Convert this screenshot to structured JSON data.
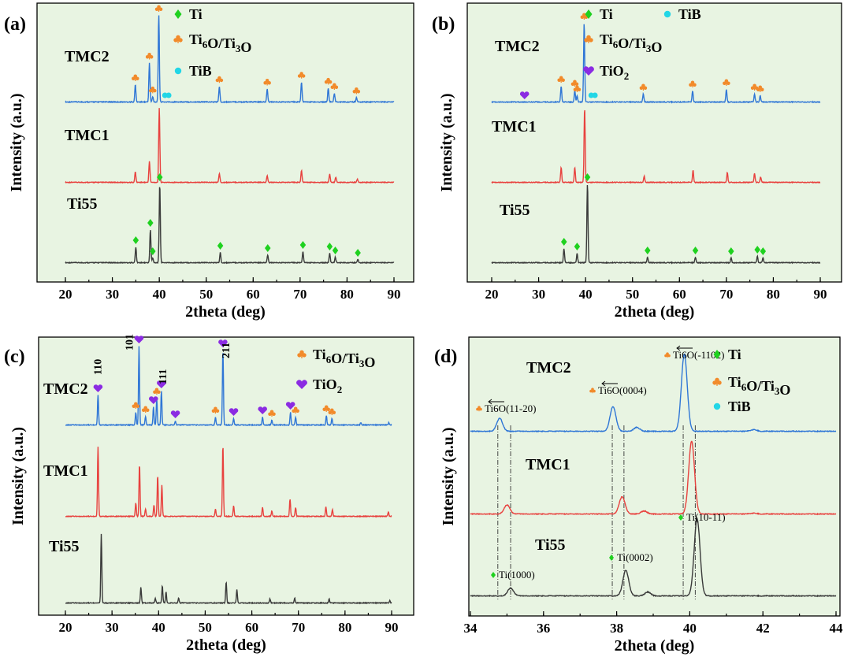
{
  "colors": {
    "Ti55": "#3a3a3a",
    "TMC1": "#e8413e",
    "TMC2": "#2f76d6",
    "Ti": "#1fd11f",
    "TiB": "#22d6e6",
    "Ti6O": "#f28a2a",
    "TiO2": "#8b2be2",
    "panel_bg": "#e8f4e2"
  },
  "icons": {
    "Ti": "diamond-icon",
    "TiB": "circle-icon",
    "Ti6O": "club-icon",
    "TiO2": "heart-icon"
  },
  "chart_data": [
    {
      "panel": "(a)",
      "type": "line",
      "xlabel": "2theta (deg)",
      "ylabel": "Intensity (a.u.)",
      "xlim": [
        15,
        95
      ],
      "xticks": [
        "20",
        "30",
        "40",
        "50",
        "60",
        "70",
        "80",
        "90"
      ],
      "legend": {
        "position": "top-right",
        "entries": [
          "Ti",
          "Ti6O/Ti3O",
          "TiB"
        ]
      },
      "series": [
        {
          "name": "TMC2",
          "peaks": [
            [
              34.9,
              0.2
            ],
            [
              37.9,
              0.45
            ],
            [
              38.6,
              0.06
            ],
            [
              39.9,
              1.0
            ],
            [
              52.8,
              0.18
            ],
            [
              63.0,
              0.15
            ],
            [
              70.3,
              0.23
            ],
            [
              76.0,
              0.16
            ],
            [
              77.3,
              0.1
            ],
            [
              82.0,
              0.05
            ]
          ]
        },
        {
          "name": "TMC1",
          "peaks": [
            [
              34.9,
              0.14
            ],
            [
              37.9,
              0.28
            ],
            [
              40.0,
              1.0
            ],
            [
              52.8,
              0.12
            ],
            [
              63.0,
              0.09
            ],
            [
              70.3,
              0.16
            ],
            [
              76.3,
              0.11
            ],
            [
              77.6,
              0.07
            ],
            [
              82.2,
              0.04
            ]
          ]
        },
        {
          "name": "Ti55",
          "peaks": [
            [
              35.0,
              0.2
            ],
            [
              38.1,
              0.42
            ],
            [
              38.6,
              0.06
            ],
            [
              40.1,
              1.0
            ],
            [
              53.0,
              0.13
            ],
            [
              63.1,
              0.1
            ],
            [
              70.6,
              0.14
            ],
            [
              76.3,
              0.12
            ],
            [
              77.5,
              0.07
            ],
            [
              82.3,
              0.04
            ]
          ]
        }
      ]
    },
    {
      "panel": "(b)",
      "type": "line",
      "xlabel": "2theta (deg)",
      "ylabel": "Intensity (a.u.)",
      "xlim": [
        15,
        95
      ],
      "xticks": [
        "20",
        "30",
        "40",
        "50",
        "60",
        "70",
        "80",
        "90"
      ],
      "legend": {
        "position": "top-right",
        "entries": [
          "Ti",
          "TiB",
          "Ti6O/Ti3O",
          "TiO2"
        ]
      },
      "series": [
        {
          "name": "TMC2",
          "peaks": [
            [
              34.8,
              0.2
            ],
            [
              37.7,
              0.15
            ],
            [
              38.2,
              0.08
            ],
            [
              39.7,
              1.0
            ],
            [
              52.3,
              0.1
            ],
            [
              62.8,
              0.14
            ],
            [
              70.0,
              0.16
            ],
            [
              76.0,
              0.1
            ],
            [
              77.2,
              0.08
            ]
          ]
        },
        {
          "name": "TMC1",
          "peaks": [
            [
              34.8,
              0.2
            ],
            [
              37.7,
              0.2
            ],
            [
              39.8,
              1.0
            ],
            [
              52.5,
              0.08
            ],
            [
              62.9,
              0.16
            ],
            [
              70.2,
              0.13
            ],
            [
              76.0,
              0.12
            ],
            [
              77.3,
              0.07
            ]
          ]
        },
        {
          "name": "Ti55",
          "peaks": [
            [
              35.4,
              0.18
            ],
            [
              38.2,
              0.12
            ],
            [
              40.4,
              1.0
            ],
            [
              53.2,
              0.07
            ],
            [
              63.4,
              0.07
            ],
            [
              71.0,
              0.06
            ],
            [
              76.6,
              0.08
            ],
            [
              77.8,
              0.06
            ]
          ]
        }
      ]
    },
    {
      "panel": "(c)",
      "type": "line",
      "xlabel": "2theta (deg)",
      "ylabel": "Intensity (a.u.)",
      "xlim": [
        15,
        95
      ],
      "xticks": [
        "20",
        "30",
        "40",
        "50",
        "60",
        "70",
        "80",
        "90"
      ],
      "legend": {
        "position": "top-right",
        "entries": [
          "Ti6O/Ti3O",
          "TiO2"
        ]
      },
      "hkl_labels": [
        "110",
        "101",
        "111",
        "211"
      ],
      "series": [
        {
          "name": "TMC2",
          "peaks": [
            [
              27.0,
              0.38
            ],
            [
              35.1,
              0.16
            ],
            [
              35.8,
              1.0
            ],
            [
              37.2,
              0.11
            ],
            [
              38.9,
              0.23
            ],
            [
              39.6,
              0.34
            ],
            [
              40.6,
              0.43
            ],
            [
              43.6,
              0.05
            ],
            [
              52.2,
              0.1
            ],
            [
              53.8,
              0.95
            ],
            [
              56.1,
              0.08
            ],
            [
              62.3,
              0.1
            ],
            [
              64.3,
              0.06
            ],
            [
              68.3,
              0.16
            ],
            [
              69.4,
              0.1
            ],
            [
              76.0,
              0.12
            ],
            [
              77.2,
              0.08
            ],
            [
              83.4,
              0.03
            ],
            [
              89.4,
              0.03
            ]
          ]
        },
        {
          "name": "TMC1",
          "peaks": [
            [
              27.0,
              0.93
            ],
            [
              35.1,
              0.18
            ],
            [
              35.9,
              0.7
            ],
            [
              37.2,
              0.1
            ],
            [
              39.0,
              0.15
            ],
            [
              39.8,
              0.55
            ],
            [
              40.7,
              0.42
            ],
            [
              52.2,
              0.1
            ],
            [
              53.8,
              0.95
            ],
            [
              56.1,
              0.14
            ],
            [
              62.3,
              0.12
            ],
            [
              64.3,
              0.07
            ],
            [
              68.2,
              0.23
            ],
            [
              69.4,
              0.12
            ],
            [
              75.9,
              0.13
            ],
            [
              77.3,
              0.09
            ],
            [
              89.3,
              0.06
            ]
          ]
        },
        {
          "name": "Ti55",
          "peaks": [
            [
              27.7,
              0.88
            ],
            [
              36.2,
              0.2
            ],
            [
              39.3,
              0.06
            ],
            [
              40.8,
              0.22
            ],
            [
              41.6,
              0.14
            ],
            [
              44.3,
              0.06
            ],
            [
              54.5,
              0.27
            ],
            [
              56.8,
              0.17
            ],
            [
              63.9,
              0.05
            ],
            [
              69.2,
              0.06
            ],
            [
              76.6,
              0.05
            ],
            [
              89.6,
              0.03
            ]
          ]
        }
      ]
    },
    {
      "panel": "(d)",
      "type": "line",
      "xlabel": "2theta (deg)",
      "ylabel": "Intensity (a.u.)",
      "xlim": [
        34,
        44
      ],
      "xticks": [
        "34",
        "36",
        "38",
        "40",
        "42",
        "44"
      ],
      "legend": {
        "position": "top-right",
        "entries": [
          "Ti",
          "Ti6O/Ti3O",
          "TiB"
        ]
      },
      "series": [
        {
          "name": "TMC2",
          "peaks": [
            [
              34.8,
              0.17
            ],
            [
              37.9,
              0.32
            ],
            [
              38.55,
              0.05
            ],
            [
              39.85,
              1.0
            ],
            [
              41.75,
              0.02
            ]
          ]
        },
        {
          "name": "TMC1",
          "peaks": [
            [
              35.0,
              0.12
            ],
            [
              38.15,
              0.23
            ],
            [
              38.75,
              0.04
            ],
            [
              40.05,
              0.97
            ],
            [
              41.75,
              0.01
            ]
          ]
        },
        {
          "name": "Ti55",
          "peaks": [
            [
              35.1,
              0.1
            ],
            [
              38.25,
              0.33
            ],
            [
              38.85,
              0.05
            ],
            [
              40.2,
              1.0
            ]
          ]
        }
      ],
      "reflection_labels": {
        "TMC2_1": "Ti6O(11-20)",
        "TMC2_2": "Ti6O(0004)",
        "TMC2_3": "Ti6O(-1102)",
        "TMC1_1": "Ti(10-11)",
        "Ti55_1": "Ti(1000)",
        "Ti55_2": "Ti(0002)"
      },
      "reflection_markers": {
        "TMC2_1": "Ti6O",
        "TMC2_2": "Ti6O",
        "TMC2_3": "Ti6O",
        "TMC1_1": "Ti",
        "Ti55_1": "Ti",
        "Ti55_2": "Ti"
      },
      "dashed_lines": [
        34.75,
        35.1,
        37.88,
        38.2,
        39.82,
        40.15
      ]
    }
  ],
  "sample_labels": {
    "TMC2": "TMC2",
    "TMC1": "TMC1",
    "Ti55": "Ti55"
  }
}
